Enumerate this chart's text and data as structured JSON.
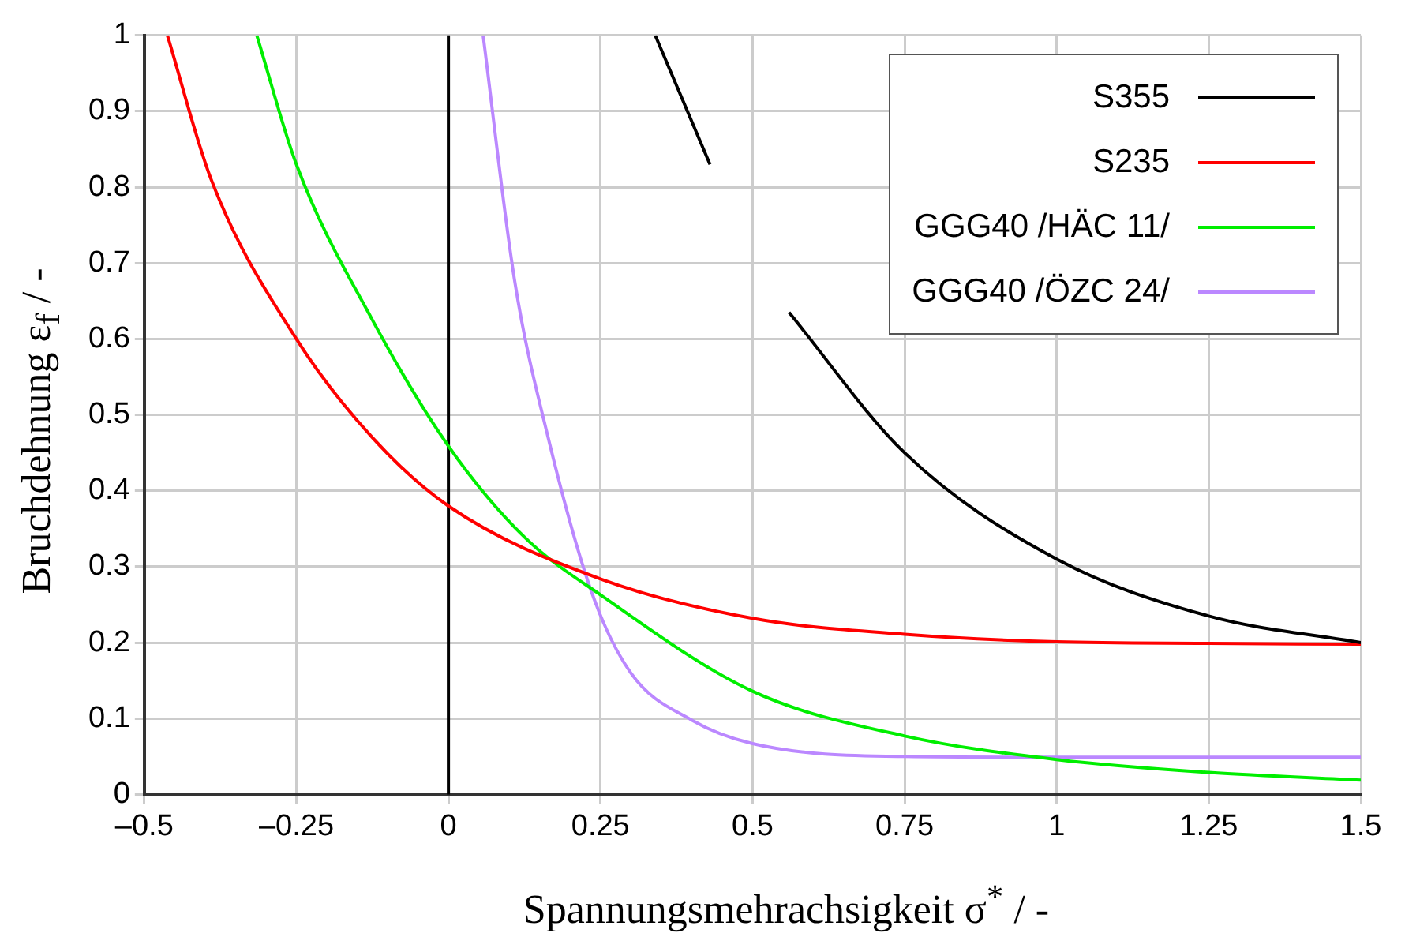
{
  "chart_data": {
    "type": "line",
    "xlabel": "Spannungsmehrachsigkeit σ$^{*}$ / -",
    "ylabel": "Bruchdehnung ε$_{f}$ / -",
    "xlim": [
      -0.5,
      1.5
    ],
    "xticks": [
      {
        "value": -0.5,
        "label": "–0.5"
      },
      {
        "value": -0.25,
        "label": "–0.25"
      },
      0,
      0.25,
      0.5,
      0.75,
      1,
      1.25,
      1.5
    ],
    "ylim": [
      0,
      1
    ],
    "yticks": [
      0,
      0.1,
      0.2,
      0.3,
      0.4,
      0.5,
      0.6,
      0.7,
      0.8,
      0.9,
      1
    ],
    "grid": true,
    "legend": "top right",
    "marker": "none",
    "line_style": "solid",
    "ref_lines": [
      {
        "axis": "x",
        "value": 0,
        "color": "#000000"
      }
    ],
    "series": [
      {
        "name": "S355",
        "color": "#000000",
        "x": [
          0.34,
          0.43,
          0.5,
          0.56,
          0.75,
          1,
          1.25,
          1.5
        ],
        "values": [
          1,
          0.83,
          null,
          0.635,
          0.45,
          0.31,
          0.235,
          0.2
        ]
      },
      {
        "name": "S235",
        "color": "#ff0000",
        "x": [
          -0.462,
          -0.39,
          -0.25,
          -0.125,
          0,
          0.25,
          0.5,
          0.75,
          1,
          1.25,
          1.5
        ],
        "values": [
          1,
          0.81,
          0.6,
          0.47,
          0.38,
          0.284,
          0.232,
          0.211,
          0.201,
          0.199,
          0.198
        ]
      },
      {
        "name": "GGG40 /HÄC 11/",
        "color": "#00ee00",
        "x": [
          -0.315,
          -0.25,
          -0.125,
          0,
          0.125,
          0.25,
          0.5,
          0.75,
          1,
          1.25,
          1.5
        ],
        "values": [
          1,
          0.83,
          0.625,
          0.459,
          0.339,
          0.263,
          0.136,
          0.077,
          0.046,
          0.029,
          0.019
        ]
      },
      {
        "name": "GGG40 /ÖZC 24/",
        "color": "#bb88ff",
        "x": [
          0.057,
          0.109,
          0.164,
          0.237,
          0.3,
          0.4,
          0.5,
          0.75,
          1,
          1.5
        ],
        "values": [
          1,
          0.676,
          0.47,
          0.263,
          0.16,
          0.098,
          0.067,
          0.05,
          0.049,
          0.049
        ]
      }
    ]
  }
}
